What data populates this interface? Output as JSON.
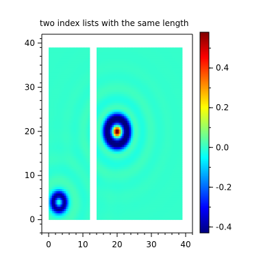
{
  "chart_data": {
    "type": "heatmap",
    "title": "two index lists with the same length",
    "xlabel": "",
    "ylabel": "",
    "xlim": [
      -2,
      42
    ],
    "ylim": [
      -3,
      42
    ],
    "x_ticks": [
      0,
      10,
      20,
      30,
      40
    ],
    "y_ticks": [
      0,
      10,
      20,
      30,
      40
    ],
    "x_tick_labels": [
      "0",
      "10",
      "20",
      "30",
      "40"
    ],
    "y_tick_labels": [
      "0",
      "10",
      "20",
      "30",
      "40"
    ],
    "grid": false,
    "colorscale": "jet",
    "color_range": [
      -0.43,
      0.58
    ],
    "colorbar_ticks": [
      -0.4,
      -0.2,
      0.0,
      0.2,
      0.4
    ],
    "colorbar_tick_labels": [
      "-0.4",
      "-0.2",
      "0.0",
      "0.2",
      "0.4"
    ],
    "panels": [
      {
        "name": "left-panel",
        "x_range": [
          0,
          12
        ],
        "y_range": [
          0,
          39
        ]
      },
      {
        "name": "right-panel",
        "x_range": [
          14,
          39
        ],
        "y_range": [
          0,
          39
        ]
      }
    ],
    "sources": [
      {
        "center": [
          3,
          4
        ],
        "amplitude": -0.4,
        "ring_radius": 1.6,
        "ring_width": 1.0
      },
      {
        "center": [
          20,
          20
        ],
        "amplitude": 0.55,
        "ring_radius": 3.0,
        "ring_width": 1.3
      }
    ]
  }
}
